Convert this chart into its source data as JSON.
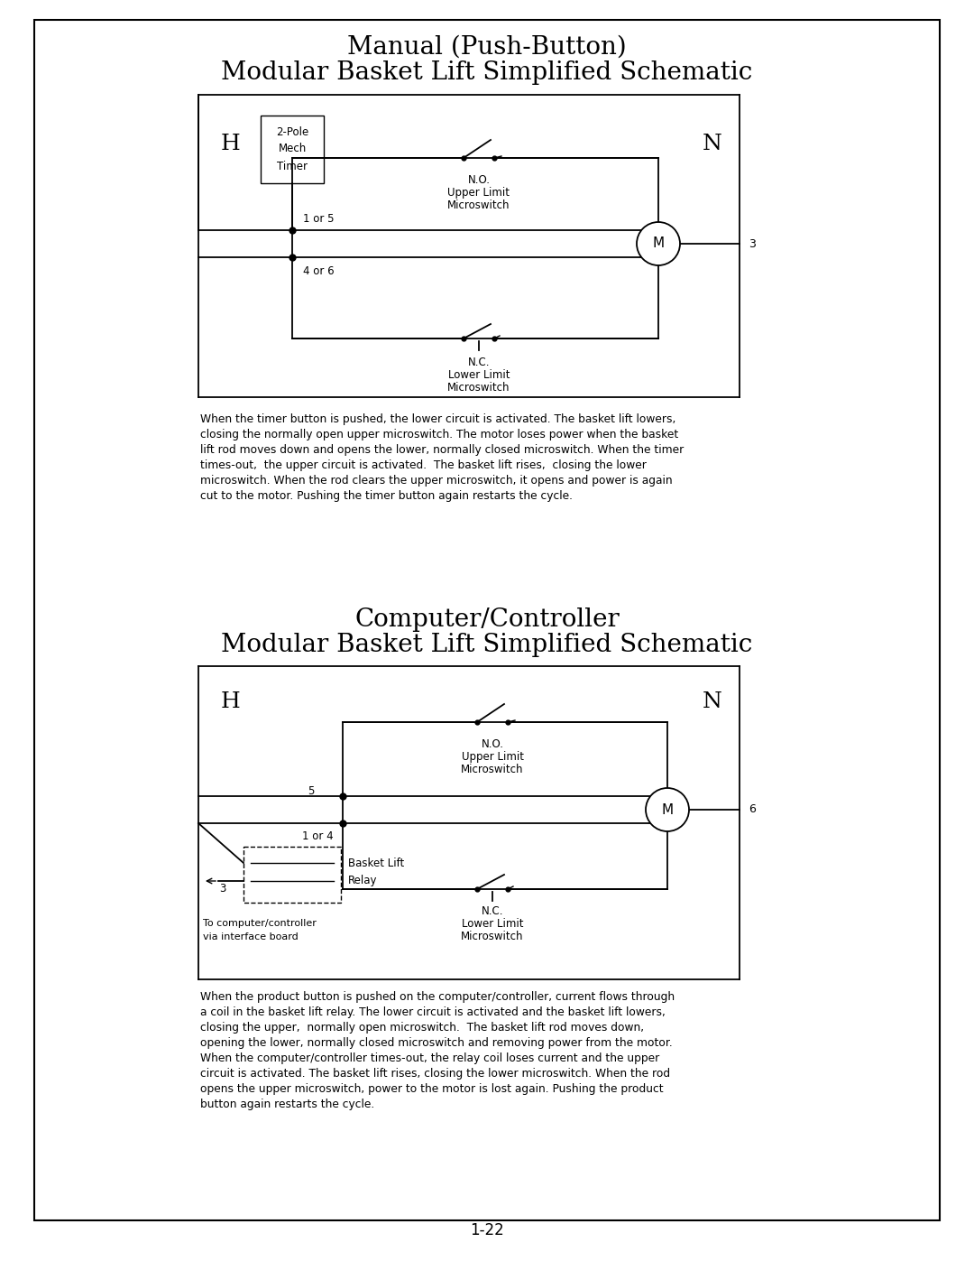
{
  "page_title": "1-22",
  "top_title_line1": "Manual (Push-Button)",
  "top_title_line2": "Modular Basket Lift Simplified Schematic",
  "bottom_title_line1": "Computer/Controller",
  "bottom_title_line2": "Modular Basket Lift Simplified Schematic",
  "top_desc": "When the timer button is pushed, the lower circuit is activated. The basket lift lowers,\nclosing the normally open upper microswitch. The motor loses power when the basket\nlift rod moves down and opens the lower, normally closed microswitch. When the timer\ntimes-out,  the upper circuit is activated.  The basket lift rises,  closing the lower\nmicroswitch. When the rod clears the upper microswitch, it opens and power is again\ncut to the motor. Pushing the timer button again restarts the cycle.",
  "bottom_desc": "When the product button is pushed on the computer/controller, current flows through\na coil in the basket lift relay. The lower circuit is activated and the basket lift lowers,\nclosing the upper,  normally open microswitch.  The basket lift rod moves down,\nopening the lower, normally closed microswitch and removing power from the motor.\nWhen the computer/controller times-out, the relay coil loses current and the upper\ncircuit is activated. The basket lift rises, closing the lower microswitch. When the rod\nopens the upper microswitch, power to the motor is lost again. Pushing the product\nbutton again restarts the cycle.",
  "bg_color": "#ffffff",
  "border_color": "#000000",
  "line_color": "#000000",
  "text_color": "#000000"
}
